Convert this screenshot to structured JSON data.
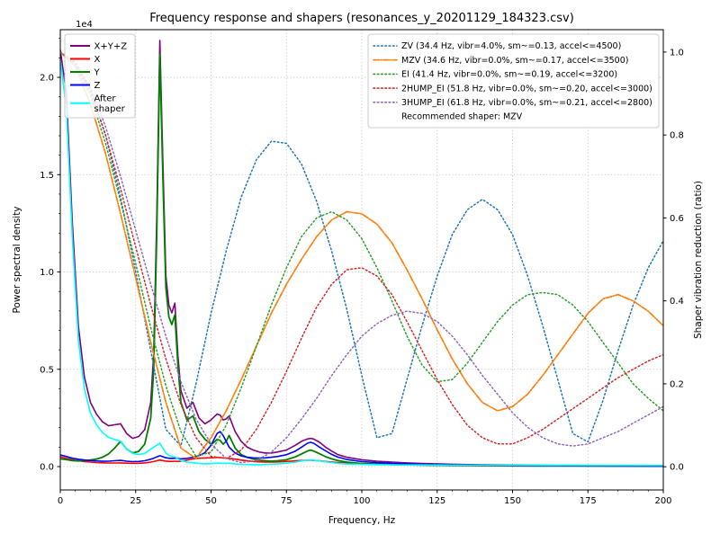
{
  "figure": {
    "title": "Frequency response and shapers (resonances_y_20201129_184323.csv)"
  },
  "axes": {
    "x": {
      "label": "Frequency, Hz",
      "min": 0,
      "max": 200,
      "ticks": [
        0,
        25,
        50,
        75,
        100,
        125,
        150,
        175,
        200
      ]
    },
    "y_left": {
      "label": "Power spectral density",
      "offset_text": "1e4",
      "min": -1200,
      "max": 22450,
      "ticks": [
        {
          "value": 0,
          "label": "0.0"
        },
        {
          "value": 5000,
          "label": "0.5"
        },
        {
          "value": 10000,
          "label": "1.0"
        },
        {
          "value": 15000,
          "label": "1.5"
        },
        {
          "value": 20000,
          "label": "2.0"
        }
      ]
    },
    "y_right": {
      "label": "Shaper vibration reduction (ratio)",
      "min": -0.056,
      "max": 1.054,
      "ticks": [
        {
          "value": 0.0,
          "label": "0.0"
        },
        {
          "value": 0.2,
          "label": "0.2"
        },
        {
          "value": 0.4,
          "label": "0.4"
        },
        {
          "value": 0.6,
          "label": "0.6"
        },
        {
          "value": 0.8,
          "label": "0.8"
        },
        {
          "value": 1.0,
          "label": "1.0"
        }
      ]
    }
  },
  "legends": {
    "psd": {
      "items": [
        {
          "label": "X+Y+Z",
          "label_lines": [
            "X+Y+Z"
          ],
          "color": "#800080",
          "style": "solid"
        },
        {
          "label": "X",
          "label_lines": [
            "X"
          ],
          "color": "#ff0000",
          "style": "solid"
        },
        {
          "label": "Y",
          "label_lines": [
            "Y"
          ],
          "color": "#008000",
          "style": "solid"
        },
        {
          "label": "Z",
          "label_lines": [
            "Z"
          ],
          "color": "#0000ff",
          "style": "solid"
        },
        {
          "label": "After shaper",
          "label_lines": [
            "After",
            "shaper"
          ],
          "color": "#00ffff",
          "style": "solid"
        }
      ]
    },
    "shapers": {
      "items": [
        {
          "label": "ZV (34.4 Hz, vibr=4.0%, sm~=0.13, accel<=4500)",
          "color": "#1f77b4",
          "style": "dotted"
        },
        {
          "label": "MZV (34.6 Hz, vibr=0.0%, sm~=0.17, accel<=3500)",
          "color": "#ff7f0e",
          "style": "dashdot"
        },
        {
          "label": "EI (41.4 Hz, vibr=0.0%, sm~=0.19, accel<=3200)",
          "color": "#2ca02c",
          "style": "dotted"
        },
        {
          "label": "2HUMP_EI (51.8 Hz, vibr=0.0%, sm~=0.20, accel<=3000)",
          "color": "#d62728",
          "style": "dotted"
        },
        {
          "label": "3HUMP_EI (61.8 Hz, vibr=0.0%, sm~=0.21, accel<=2800)",
          "color": "#9467bd",
          "style": "dotted"
        }
      ],
      "footer": "Recommended shaper: MZV"
    }
  },
  "chart_data": {
    "type": "line",
    "title": "Frequency response and shapers (resonances_y_20201129_184323.csv)",
    "xlabel": "Frequency, Hz",
    "ylabel_left": "Power spectral density (1e4)",
    "ylabel_right": "Shaper vibration reduction (ratio)",
    "xlim": [
      0,
      200
    ],
    "ylim_left": [
      -1200,
      22450
    ],
    "ylim_right": [
      -0.056,
      1.054
    ],
    "grid": true,
    "recommended_shaper": "MZV",
    "psd_x": [
      0,
      2,
      4,
      6,
      8,
      10,
      12,
      14,
      16,
      18,
      20,
      22,
      24,
      26,
      28,
      30,
      31,
      32,
      33,
      34,
      35,
      36,
      37,
      38,
      39,
      40,
      42,
      44,
      46,
      48,
      50,
      51,
      52,
      53,
      54,
      55,
      56,
      58,
      60,
      62,
      64,
      66,
      68,
      70,
      72,
      75,
      78,
      80,
      82,
      83,
      84,
      86,
      88,
      90,
      92,
      95,
      100,
      105,
      110,
      115,
      120,
      130,
      140,
      150,
      160,
      170,
      180,
      190,
      200
    ],
    "shaper_x": [
      0,
      5,
      10,
      15,
      20,
      25,
      30,
      35,
      40,
      45,
      50,
      55,
      60,
      65,
      70,
      75,
      80,
      85,
      90,
      95,
      100,
      105,
      110,
      115,
      120,
      125,
      130,
      135,
      140,
      145,
      150,
      155,
      160,
      165,
      170,
      175,
      180,
      185,
      190,
      195,
      200
    ],
    "series": [
      {
        "name": "X+Y+Z",
        "axis": "left",
        "color": "#800080",
        "style": "solid",
        "width": 1.6,
        "x_ref": "psd_x",
        "y": [
          21400,
          19200,
          12500,
          7200,
          4600,
          3300,
          2700,
          2300,
          2100,
          2150,
          2200,
          1700,
          1450,
          1550,
          1900,
          3300,
          5800,
          12800,
          21900,
          15800,
          9800,
          8300,
          7900,
          8400,
          5700,
          3900,
          3000,
          3300,
          2500,
          2200,
          2400,
          2550,
          2700,
          2650,
          2400,
          2450,
          2600,
          1800,
          1300,
          1000,
          850,
          750,
          700,
          700,
          750,
          850,
          1100,
          1300,
          1420,
          1450,
          1420,
          1250,
          1000,
          800,
          620,
          480,
          350,
          280,
          230,
          190,
          160,
          120,
          95,
          80,
          70,
          60,
          55,
          50,
          45
        ]
      },
      {
        "name": "X",
        "axis": "left",
        "color": "#ff0000",
        "style": "solid",
        "width": 1.6,
        "x_ref": "psd_x",
        "y": [
          500,
          420,
          350,
          300,
          260,
          230,
          210,
          195,
          185,
          185,
          190,
          175,
          165,
          170,
          190,
          230,
          260,
          300,
          340,
          310,
          285,
          270,
          270,
          280,
          265,
          285,
          330,
          400,
          430,
          445,
          455,
          465,
          475,
          465,
          450,
          435,
          425,
          385,
          335,
          295,
          265,
          245,
          235,
          230,
          240,
          265,
          295,
          315,
          325,
          325,
          315,
          295,
          265,
          235,
          205,
          175,
          145,
          125,
          105,
          92,
          82,
          65,
          55,
          48,
          42,
          37,
          33,
          30,
          27
        ]
      },
      {
        "name": "Y",
        "axis": "left",
        "color": "#008000",
        "style": "solid",
        "width": 1.8,
        "x_ref": "psd_x",
        "y": [
          400,
          360,
          310,
          290,
          300,
          340,
          390,
          480,
          650,
          950,
          1300,
          900,
          700,
          780,
          1150,
          2500,
          5000,
          12000,
          21200,
          15000,
          9200,
          7700,
          7300,
          7800,
          5200,
          3300,
          2400,
          2600,
          1800,
          1400,
          1150,
          1250,
          1400,
          1350,
          1150,
          1300,
          1600,
          950,
          620,
          470,
          390,
          330,
          300,
          280,
          300,
          350,
          500,
          650,
          800,
          850,
          800,
          660,
          510,
          400,
          310,
          230,
          160,
          130,
          105,
          88,
          75,
          55,
          45,
          38,
          33,
          28,
          25,
          22,
          20
        ]
      },
      {
        "name": "Z",
        "axis": "left",
        "color": "#0000ff",
        "style": "solid",
        "width": 1.6,
        "x_ref": "psd_x",
        "y": [
          600,
          520,
          430,
          380,
          340,
          310,
          290,
          275,
          280,
          300,
          320,
          280,
          255,
          265,
          300,
          380,
          430,
          500,
          560,
          510,
          455,
          430,
          420,
          430,
          415,
          400,
          420,
          480,
          560,
          720,
          1100,
          1400,
          1700,
          1800,
          1600,
          1300,
          1000,
          700,
          550,
          480,
          450,
          440,
          450,
          480,
          520,
          610,
          800,
          1000,
          1200,
          1250,
          1200,
          1000,
          810,
          630,
          490,
          365,
          255,
          205,
          165,
          135,
          113,
          82,
          66,
          56,
          49,
          43,
          39,
          35,
          31
        ]
      },
      {
        "name": "After shaper",
        "axis": "left",
        "color": "#00ffff",
        "style": "solid",
        "width": 1.6,
        "x_ref": "psd_x",
        "y": [
          20900,
          18400,
          11700,
          6500,
          4000,
          2750,
          2150,
          1750,
          1500,
          1400,
          1300,
          900,
          680,
          620,
          680,
          900,
          1000,
          1100,
          1200,
          950,
          700,
          580,
          520,
          500,
          400,
          310,
          230,
          200,
          165,
          145,
          155,
          165,
          175,
          175,
          165,
          165,
          175,
          135,
          115,
          105,
          100,
          100,
          110,
          120,
          140,
          170,
          230,
          290,
          330,
          340,
          330,
          290,
          245,
          205,
          165,
          135,
          115,
          100,
          92,
          86,
          82,
          76,
          72,
          69,
          66,
          64,
          62,
          61,
          60
        ]
      },
      {
        "name": "ZV",
        "axis": "right",
        "color": "#1f77b4",
        "style": "dotted",
        "width": 1.5,
        "x_ref": "shaper_x",
        "y": [
          1.0,
          0.97,
          0.91,
          0.8,
          0.65,
          0.47,
          0.28,
          0.09,
          0.05,
          0.2,
          0.37,
          0.52,
          0.65,
          0.74,
          0.785,
          0.78,
          0.73,
          0.64,
          0.52,
          0.38,
          0.22,
          0.07,
          0.08,
          0.21,
          0.34,
          0.46,
          0.56,
          0.62,
          0.645,
          0.62,
          0.56,
          0.46,
          0.34,
          0.21,
          0.08,
          0.06,
          0.16,
          0.28,
          0.39,
          0.48,
          0.545
        ]
      },
      {
        "name": "MZV",
        "axis": "right",
        "color": "#ff7f0e",
        "style": "dashdot",
        "width": 1.7,
        "x_ref": "shaper_x",
        "y": [
          1.0,
          0.965,
          0.875,
          0.755,
          0.61,
          0.455,
          0.3,
          0.155,
          0.045,
          0.02,
          0.07,
          0.135,
          0.21,
          0.29,
          0.37,
          0.44,
          0.5,
          0.555,
          0.595,
          0.615,
          0.61,
          0.585,
          0.54,
          0.475,
          0.405,
          0.33,
          0.26,
          0.2,
          0.155,
          0.135,
          0.145,
          0.175,
          0.22,
          0.27,
          0.32,
          0.37,
          0.405,
          0.415,
          0.4,
          0.375,
          0.34
        ]
      },
      {
        "name": "EI",
        "axis": "right",
        "color": "#2ca02c",
        "style": "dotted",
        "width": 1.5,
        "x_ref": "shaper_x",
        "y": [
          1.0,
          0.97,
          0.895,
          0.78,
          0.64,
          0.49,
          0.335,
          0.195,
          0.085,
          0.025,
          0.035,
          0.1,
          0.19,
          0.29,
          0.39,
          0.48,
          0.555,
          0.6,
          0.615,
          0.595,
          0.55,
          0.48,
          0.4,
          0.315,
          0.245,
          0.205,
          0.21,
          0.25,
          0.3,
          0.35,
          0.39,
          0.415,
          0.42,
          0.415,
          0.39,
          0.35,
          0.3,
          0.25,
          0.2,
          0.165,
          0.135
        ]
      },
      {
        "name": "2HUMP_EI",
        "axis": "right",
        "color": "#d62728",
        "style": "dotted",
        "width": 1.5,
        "x_ref": "shaper_x",
        "y": [
          1.0,
          0.975,
          0.905,
          0.8,
          0.67,
          0.53,
          0.39,
          0.26,
          0.15,
          0.07,
          0.025,
          0.02,
          0.04,
          0.09,
          0.155,
          0.23,
          0.31,
          0.385,
          0.44,
          0.475,
          0.48,
          0.46,
          0.415,
          0.35,
          0.28,
          0.21,
          0.15,
          0.1,
          0.07,
          0.055,
          0.055,
          0.07,
          0.09,
          0.115,
          0.14,
          0.165,
          0.19,
          0.215,
          0.235,
          0.255,
          0.27
        ]
      },
      {
        "name": "3HUMP_EI",
        "axis": "right",
        "color": "#9467bd",
        "style": "dotted",
        "width": 1.5,
        "x_ref": "shaper_x",
        "y": [
          1.0,
          0.975,
          0.915,
          0.82,
          0.7,
          0.57,
          0.44,
          0.315,
          0.205,
          0.115,
          0.055,
          0.02,
          0.01,
          0.015,
          0.035,
          0.07,
          0.115,
          0.165,
          0.22,
          0.27,
          0.315,
          0.345,
          0.365,
          0.375,
          0.37,
          0.35,
          0.315,
          0.27,
          0.22,
          0.175,
          0.13,
          0.095,
          0.07,
          0.055,
          0.05,
          0.055,
          0.07,
          0.085,
          0.105,
          0.125,
          0.145
        ]
      }
    ]
  }
}
